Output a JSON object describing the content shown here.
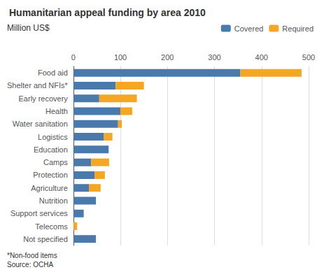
{
  "chart_data": {
    "type": "bar",
    "orientation": "horizontal",
    "stacked": true,
    "title": "Humanitarian appeal funding by area 2010",
    "xlabel": "Million US$",
    "categories": [
      "Food aid",
      "Shelter and NFIs*",
      "Early recovery",
      "Health",
      "Water sanitation",
      "Logistics",
      "Education",
      "Camps",
      "Protection",
      "Agriculture",
      "Nutrition",
      "Support services",
      "Telecoms",
      "Not specified"
    ],
    "series": [
      {
        "name": "Covered",
        "color": "#4a7aab",
        "values": [
          355,
          90,
          55,
          100,
          95,
          65,
          75,
          38,
          45,
          33,
          48,
          22,
          0,
          48
        ]
      },
      {
        "name": "Required",
        "color": "#f5a623",
        "values": [
          130,
          60,
          80,
          25,
          8,
          18,
          0,
          38,
          22,
          25,
          0,
          0,
          8,
          0
        ]
      }
    ],
    "xlim": [
      0,
      500
    ],
    "xticks": [
      0,
      100,
      200,
      300,
      400,
      500
    ],
    "grid": true,
    "legend": "upper right",
    "annotations": [
      "*Non-food items",
      "Source: OCHA"
    ]
  }
}
